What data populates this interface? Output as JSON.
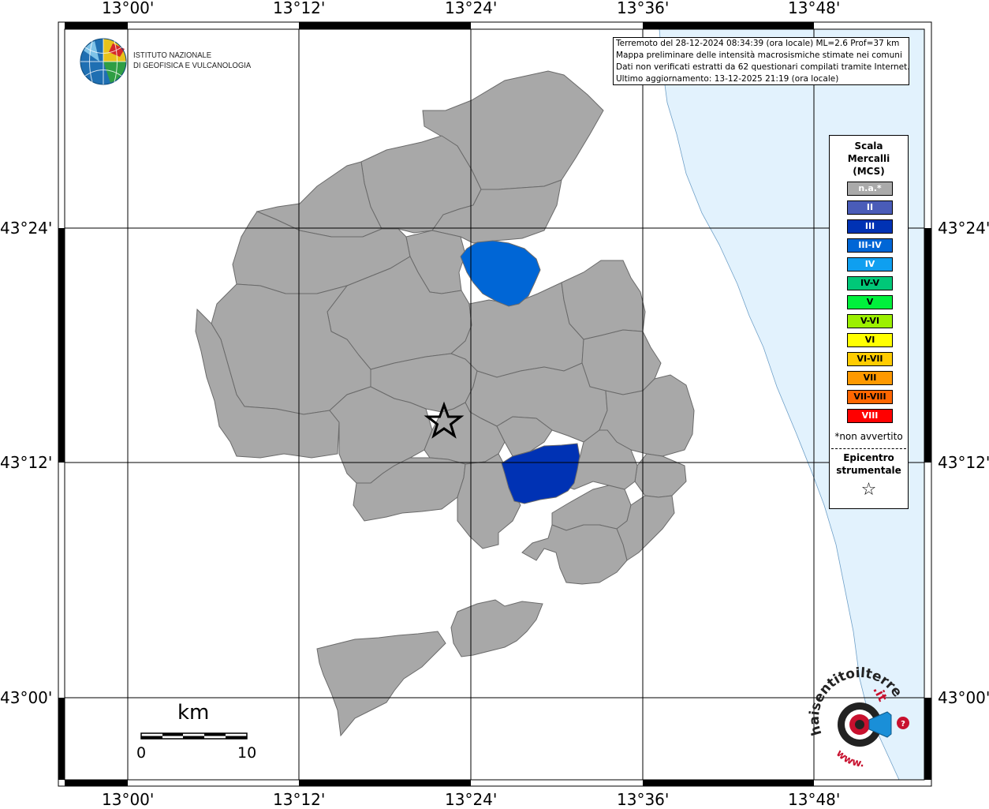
{
  "logo": {
    "line1": "ISTITUTO NAZIONALE",
    "line2": "DI GEOFISICA E VULCANOLOGIA"
  },
  "info": {
    "line1": "Terremoto del 28-12-2024 08:34:39 (ora locale) ML=2.6 Prof=37 km",
    "line2": "Mappa preliminare delle intensità macrosismiche stimate nei comuni",
    "line3": "Dati non verificati estratti da 62 questionari compilati tramite Internet.",
    "line4": "Ultimo aggiornamento: 13-12-2025 21:19 (ora locale)"
  },
  "axes": {
    "lon_labels": [
      "13°00'",
      "13°12'",
      "13°24'",
      "13°36'",
      "13°48'"
    ],
    "lat_labels": [
      "43°24'",
      "43°12'",
      "43°00'"
    ]
  },
  "legend": {
    "title1": "Scala",
    "title2": "Mercalli",
    "title3": "(MCS)",
    "items": [
      {
        "label": "n.a.*",
        "color": "#aaaaaa",
        "text_color": "#ffffff"
      },
      {
        "label": "II",
        "color": "#4a5cb8",
        "text_color": "#ffffff"
      },
      {
        "label": "III",
        "color": "#0032b4",
        "text_color": "#ffffff"
      },
      {
        "label": "III-IV",
        "color": "#0066d6",
        "text_color": "#ffffff"
      },
      {
        "label": "IV",
        "color": "#0f9ff0",
        "text_color": "#ffffff"
      },
      {
        "label": "IV-V",
        "color": "#00c878",
        "text_color": "#000000"
      },
      {
        "label": "V",
        "color": "#00f03c",
        "text_color": "#000000"
      },
      {
        "label": "V-VI",
        "color": "#9cf000",
        "text_color": "#000000"
      },
      {
        "label": "VI",
        "color": "#ffff00",
        "text_color": "#000000"
      },
      {
        "label": "VI-VII",
        "color": "#ffcc00",
        "text_color": "#000000"
      },
      {
        "label": "VII",
        "color": "#ff9900",
        "text_color": "#000000"
      },
      {
        "label": "VII-VIII",
        "color": "#ff6600",
        "text_color": "#000000"
      },
      {
        "label": "VIII",
        "color": "#ff0000",
        "text_color": "#ffffff"
      }
    ],
    "note": "*non avvertito",
    "epicenter1": "Epicentro",
    "epicenter2": "strumentale"
  },
  "scale_bar": {
    "unit": "km",
    "start": "0",
    "end": "10"
  },
  "watermark": {
    "text_main": "haisentitoilterremoto",
    "text_suffix": ".it",
    "text_www": "www."
  },
  "colors": {
    "comuni_na": "#a8a8a8",
    "comune_III": "#0032b4",
    "comune_III_IV": "#0066d6",
    "sea": "#e2f2fd"
  }
}
